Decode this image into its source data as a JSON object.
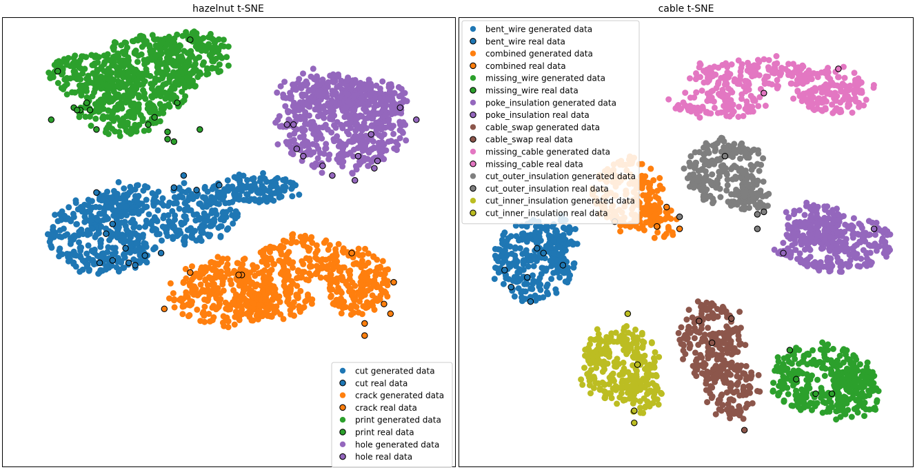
{
  "chart_data": [
    {
      "type": "scatter",
      "title": "hazelnut t-SNE",
      "xlabel": "",
      "ylabel": "",
      "axis_ticks": "hidden",
      "legend_position": "lower-right",
      "clusters": [
        {
          "name": "cut",
          "color": "#1f77b4",
          "generated": [
            {
              "cx": -38,
              "cy": 26,
              "rx": 18,
              "ry": 16
            },
            {
              "cx": -10,
              "cy": 34,
              "rx": 12,
              "ry": 12
            },
            {
              "cx": 8,
              "cy": 44,
              "rx": 13,
              "ry": 7
            },
            {
              "cx": -30,
              "cy": 40,
              "rx": 10,
              "ry": 6
            }
          ],
          "real": [
            [
              -38,
              26
            ],
            [
              -32,
              20
            ],
            [
              -36,
              15
            ],
            [
              -40,
              14
            ],
            [
              -31,
              14
            ],
            [
              -29,
              13
            ],
            [
              -26,
              17
            ],
            [
              -21,
              18
            ],
            [
              -36,
              30
            ],
            [
              -14,
              50
            ],
            [
              -10,
              44
            ],
            [
              -17,
              45
            ],
            [
              -3,
              46
            ],
            [
              -41,
              43
            ]
          ]
        },
        {
          "name": "crack",
          "color": "#ff7f0e",
          "generated": [
            {
              "cx": -2,
              "cy": 2,
              "rx": 16,
              "ry": 14
            },
            {
              "cx": 22,
              "cy": 16,
              "rx": 12,
              "ry": 10
            },
            {
              "cx": 40,
              "cy": 6,
              "rx": 10,
              "ry": 14
            },
            {
              "cx": 14,
              "cy": -2,
              "rx": 12,
              "ry": 8
            }
          ],
          "real": [
            [
              -20,
              -5
            ],
            [
              -12,
              10
            ],
            [
              4,
              9
            ],
            [
              3,
              9
            ],
            [
              38,
              18
            ],
            [
              50,
              -7
            ],
            [
              48,
              -3
            ],
            [
              42,
              -11
            ],
            [
              42,
              -16
            ],
            [
              51,
              6
            ]
          ]
        },
        {
          "name": "print",
          "color": "#2ca02c",
          "generated": [
            {
              "cx": -42,
              "cy": 90,
              "rx": 14,
              "ry": 10
            },
            {
              "cx": -25,
              "cy": 92,
              "rx": 16,
              "ry": 16
            },
            {
              "cx": -12,
              "cy": 100,
              "rx": 12,
              "ry": 10
            },
            {
              "cx": -34,
              "cy": 75,
              "rx": 13,
              "ry": 8
            }
          ],
          "real": [
            [
              -53,
              93
            ],
            [
              -48,
              78
            ],
            [
              -44,
              80
            ],
            [
              -43,
              77
            ],
            [
              -46,
              77
            ],
            [
              -47,
              77
            ],
            [
              -55,
              73
            ],
            [
              -41,
              69
            ],
            [
              -25,
              71
            ],
            [
              -17,
              64
            ],
            [
              -19,
              68
            ],
            [
              -23,
              74
            ],
            [
              -19,
              65
            ],
            [
              -9,
              69
            ],
            [
              -16,
              80
            ],
            [
              -12,
              106
            ]
          ]
        },
        {
          "name": "hole",
          "color": "#9467bd",
          "generated": [
            {
              "cx": 35,
              "cy": 70,
              "rx": 20,
              "ry": 18
            },
            {
              "cx": 30,
              "cy": 85,
              "rx": 14,
              "ry": 8
            },
            {
              "cx": 45,
              "cy": 80,
              "rx": 10,
              "ry": 10
            }
          ],
          "real": [
            [
              18,
              71
            ],
            [
              20,
              71
            ],
            [
              21,
              61
            ],
            [
              23,
              58
            ],
            [
              29,
              54
            ],
            [
              45,
              53
            ],
            [
              46,
              56
            ],
            [
              53,
              78
            ],
            [
              58,
              73
            ],
            [
              44,
              67
            ],
            [
              40,
              58
            ],
            [
              39,
              48
            ],
            [
              32,
              50
            ]
          ]
        }
      ],
      "legend": [
        {
          "label": "cut generated data",
          "color": "#1f77b4",
          "real": false
        },
        {
          "label": "cut real data",
          "color": "#1f77b4",
          "real": true
        },
        {
          "label": "crack generated data",
          "color": "#ff7f0e",
          "real": false
        },
        {
          "label": "crack real data",
          "color": "#ff7f0e",
          "real": true
        },
        {
          "label": "print generated data",
          "color": "#2ca02c",
          "real": false
        },
        {
          "label": "print real data",
          "color": "#2ca02c",
          "real": true
        },
        {
          "label": "hole generated data",
          "color": "#9467bd",
          "real": false
        },
        {
          "label": "hole real data",
          "color": "#9467bd",
          "real": true
        }
      ]
    },
    {
      "type": "scatter",
      "title": "cable t-SNE",
      "xlabel": "",
      "ylabel": "",
      "axis_ticks": "hidden",
      "legend_position": "upper-left",
      "clusters": [
        {
          "name": "bent_wire",
          "color": "#1f77b4",
          "generated": [
            {
              "cx": -47,
              "cy": 15,
              "rx": 12,
              "ry": 16
            },
            {
              "cx": -40,
              "cy": 24,
              "rx": 6,
              "ry": 8
            }
          ],
          "real": [
            [
              -49,
              8
            ],
            [
              -54,
              4
            ],
            [
              -46,
              20
            ],
            [
              -38,
              13
            ],
            [
              -44,
              18
            ],
            [
              -56,
              11
            ],
            [
              -48,
              -2
            ]
          ]
        },
        {
          "name": "combined",
          "color": "#ff7f0e",
          "generated": [
            {
              "cx": -18,
              "cy": 42,
              "rx": 10,
              "ry": 15
            },
            {
              "cx": -8,
              "cy": 30,
              "rx": 5,
              "ry": 6
            }
          ],
          "real": [
            [
              -22,
              31
            ],
            [
              -6,
              37
            ],
            [
              -9,
              29
            ],
            [
              -2,
              28
            ]
          ]
        },
        {
          "name": "missing_wire",
          "color": "#2ca02c",
          "generated": [
            {
              "cx": 42,
              "cy": -34,
              "rx": 16,
              "ry": 14
            },
            {
              "cx": 52,
              "cy": -40,
              "rx": 8,
              "ry": 10
            }
          ],
          "real": [
            [
              32,
              -22
            ],
            [
              34,
              -34
            ],
            [
              40,
              -40
            ],
            [
              45,
              -40
            ]
          ]
        },
        {
          "name": "poke_insulation",
          "color": "#9467bd",
          "generated": [
            {
              "cx": 46,
              "cy": 22,
              "rx": 18,
              "ry": 12
            },
            {
              "cx": 40,
              "cy": 30,
              "rx": 10,
              "ry": 8
            }
          ],
          "real": [
            [
              58,
              28
            ],
            [
              30,
              18
            ]
          ]
        },
        {
          "name": "cable_swap",
          "color": "#8c564b",
          "generated": [
            {
              "cx": 8,
              "cy": -18,
              "rx": 10,
              "ry": 16
            },
            {
              "cx": 14,
              "cy": -38,
              "rx": 8,
              "ry": 12
            }
          ],
          "real": [
            [
              4,
              -10
            ],
            [
              14,
              -9
            ],
            [
              8,
              -19
            ],
            [
              18,
              -55
            ]
          ]
        },
        {
          "name": "missing_cable",
          "color": "#e377c2",
          "generated": [
            {
              "cx": 20,
              "cy": 92,
              "rx": 20,
              "ry": 6
            },
            {
              "cx": 45,
              "cy": 85,
              "rx": 12,
              "ry": 10
            },
            {
              "cx": 10,
              "cy": 80,
              "rx": 14,
              "ry": 6
            }
          ],
          "real": [
            [
              24,
              84
            ],
            [
              47,
              94
            ]
          ]
        },
        {
          "name": "cut_outer_insulation",
          "color": "#7f7f7f",
          "generated": [
            {
              "cx": 12,
              "cy": 52,
              "rx": 12,
              "ry": 14
            },
            {
              "cx": 20,
              "cy": 40,
              "rx": 6,
              "ry": 6
            }
          ],
          "real": [
            [
              12,
              58
            ],
            [
              22,
              34
            ],
            [
              24,
              35
            ],
            [
              -2,
              33
            ],
            [
              22,
              28
            ]
          ]
        },
        {
          "name": "cut_inner_insulation",
          "color": "#bcbd22",
          "generated": [
            {
              "cx": -20,
              "cy": -28,
              "rx": 12,
              "ry": 16
            },
            {
              "cx": -14,
              "cy": -40,
              "rx": 6,
              "ry": 8
            }
          ],
          "real": [
            [
              -18,
              -7
            ],
            [
              -15,
              -28
            ],
            [
              -16,
              -47
            ],
            [
              -16,
              -52
            ]
          ]
        }
      ],
      "legend": [
        {
          "label": "bent_wire generated data",
          "color": "#1f77b4",
          "real": false
        },
        {
          "label": "bent_wire real data",
          "color": "#1f77b4",
          "real": true
        },
        {
          "label": "combined generated data",
          "color": "#ff7f0e",
          "real": false
        },
        {
          "label": "combined real data",
          "color": "#ff7f0e",
          "real": true
        },
        {
          "label": "missing_wire generated data",
          "color": "#2ca02c",
          "real": false
        },
        {
          "label": "missing_wire real data",
          "color": "#2ca02c",
          "real": true
        },
        {
          "label": "poke_insulation generated data",
          "color": "#9467bd",
          "real": false
        },
        {
          "label": "poke_insulation real data",
          "color": "#9467bd",
          "real": true
        },
        {
          "label": "cable_swap generated data",
          "color": "#8c564b",
          "real": false
        },
        {
          "label": "cable_swap real data",
          "color": "#8c564b",
          "real": true
        },
        {
          "label": "missing_cable generated data",
          "color": "#e377c2",
          "real": false
        },
        {
          "label": "missing_cable real data",
          "color": "#e377c2",
          "real": true
        },
        {
          "label": "cut_outer_insulation generated data",
          "color": "#7f7f7f",
          "real": false
        },
        {
          "label": "cut_outer_insulation real data",
          "color": "#7f7f7f",
          "real": true
        },
        {
          "label": "cut_inner_insulation generated data",
          "color": "#bcbd22",
          "real": false
        },
        {
          "label": "cut_inner_insulation real data",
          "color": "#bcbd22",
          "real": true
        }
      ]
    }
  ]
}
